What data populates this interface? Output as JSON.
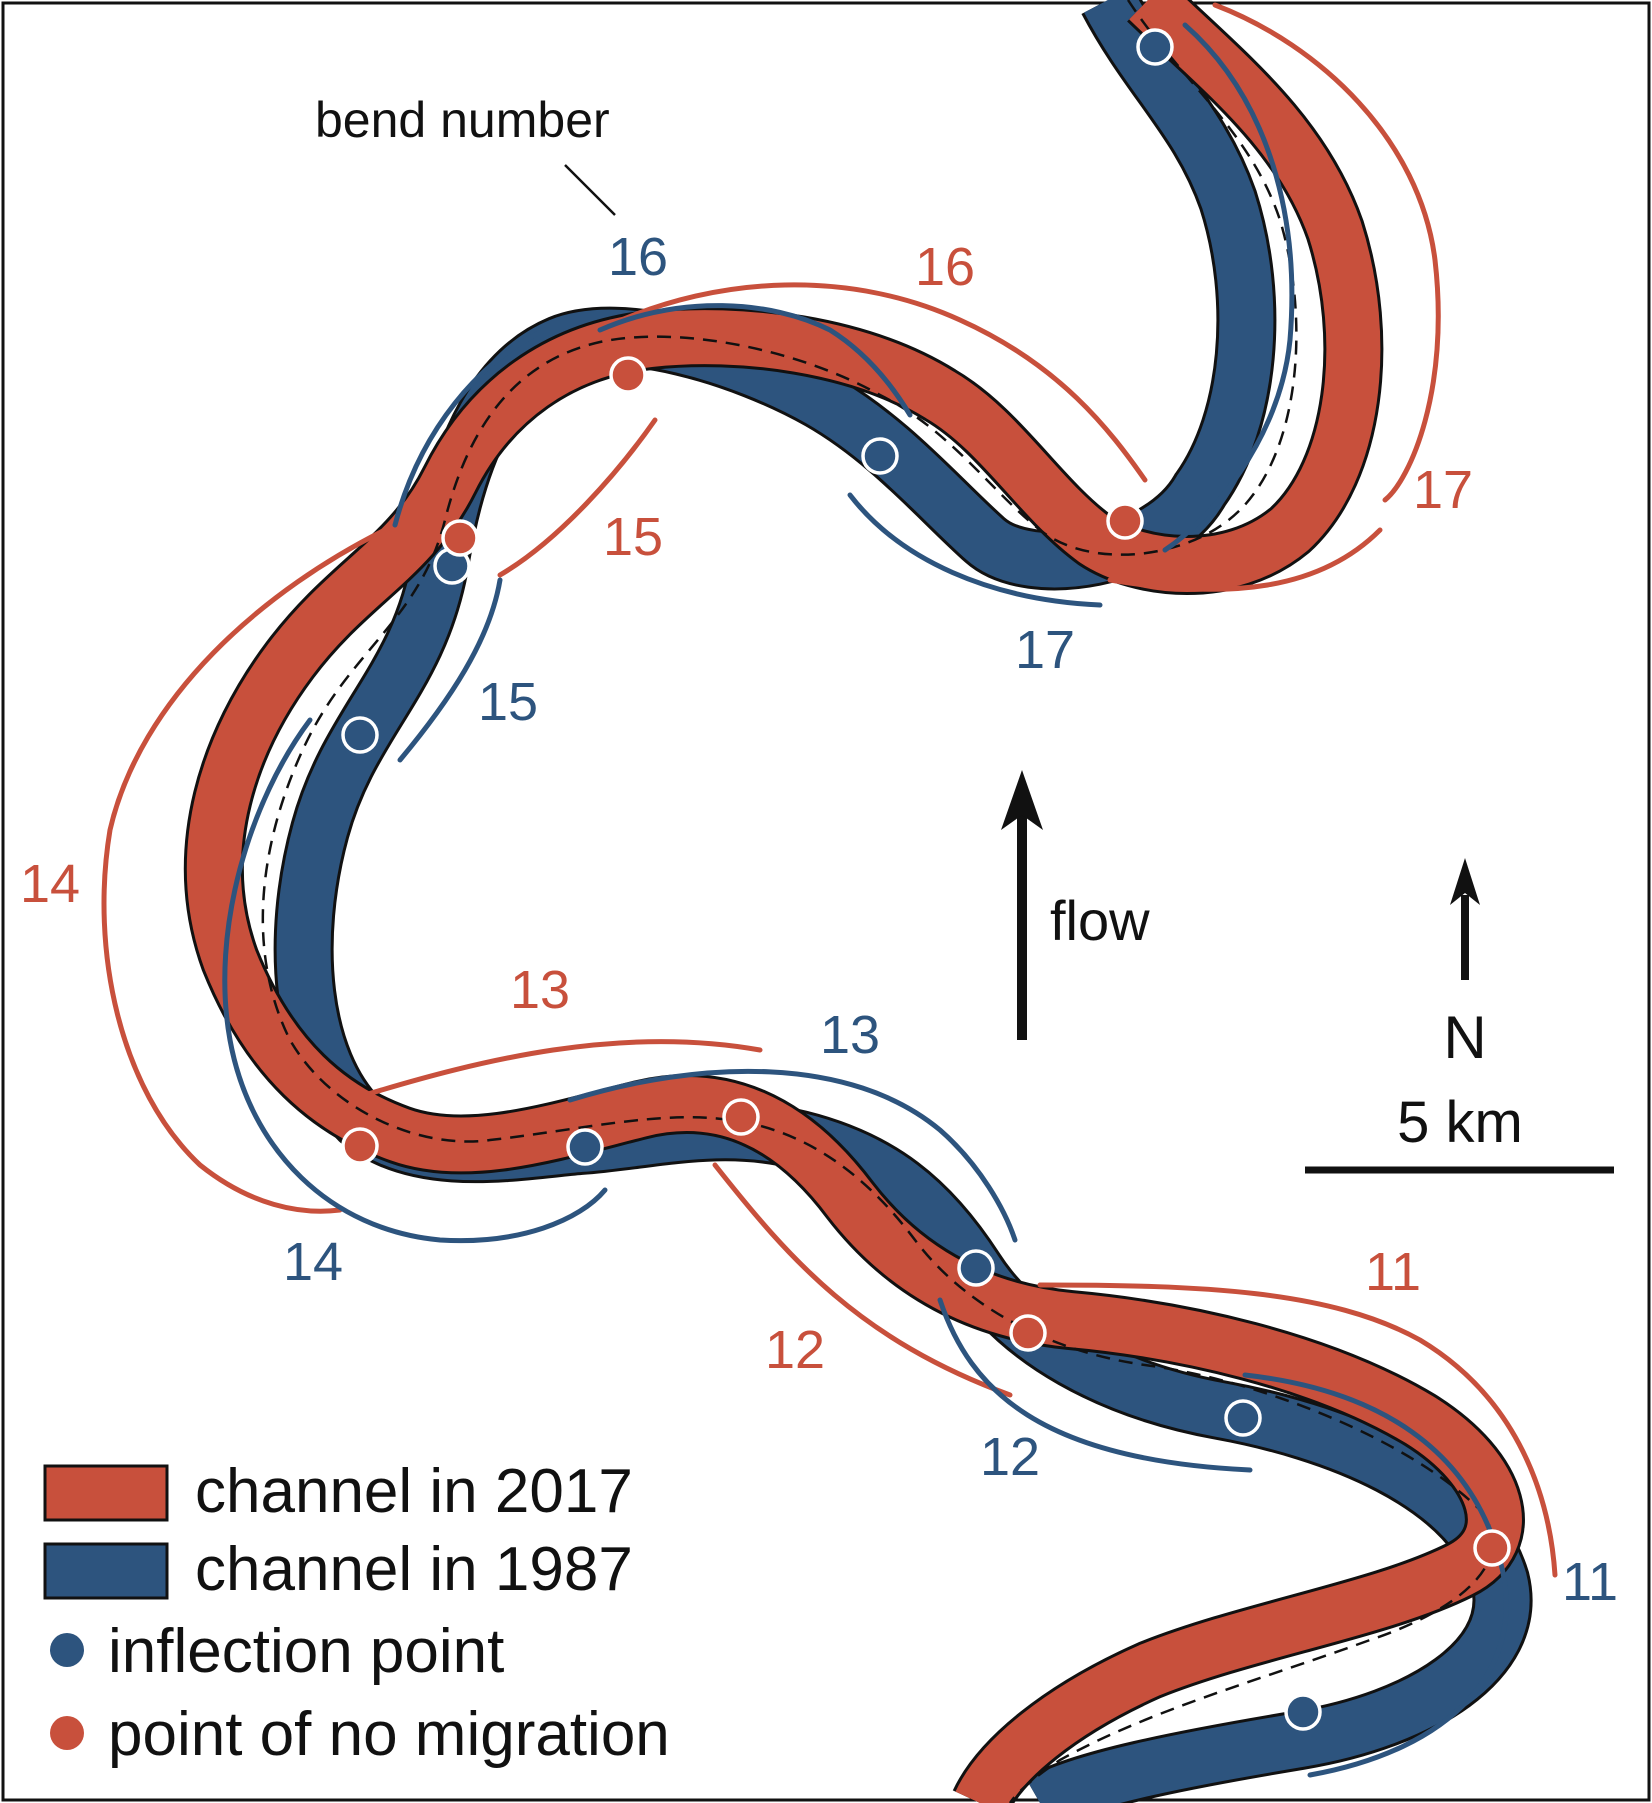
{
  "colors": {
    "channel_2017": "#c8503c",
    "channel_1987": "#2d547e",
    "outline": "#111111",
    "text": "#111111",
    "background": "#ffffff"
  },
  "annotations": {
    "bend_number_callout": "bend number",
    "flow_label": "flow",
    "north_label": "N",
    "scale_label": "5 km"
  },
  "bend_labels_2017": [
    "16",
    "15",
    "17",
    "14",
    "13",
    "11",
    "12"
  ],
  "bend_labels_1987": [
    "16",
    "17",
    "15",
    "13",
    "14",
    "12",
    "11"
  ],
  "legend": {
    "channel_2017": "channel in 2017",
    "channel_1987": "channel in 1987",
    "inflection_point": "inflection point",
    "no_migration_point": "point of no migration"
  }
}
